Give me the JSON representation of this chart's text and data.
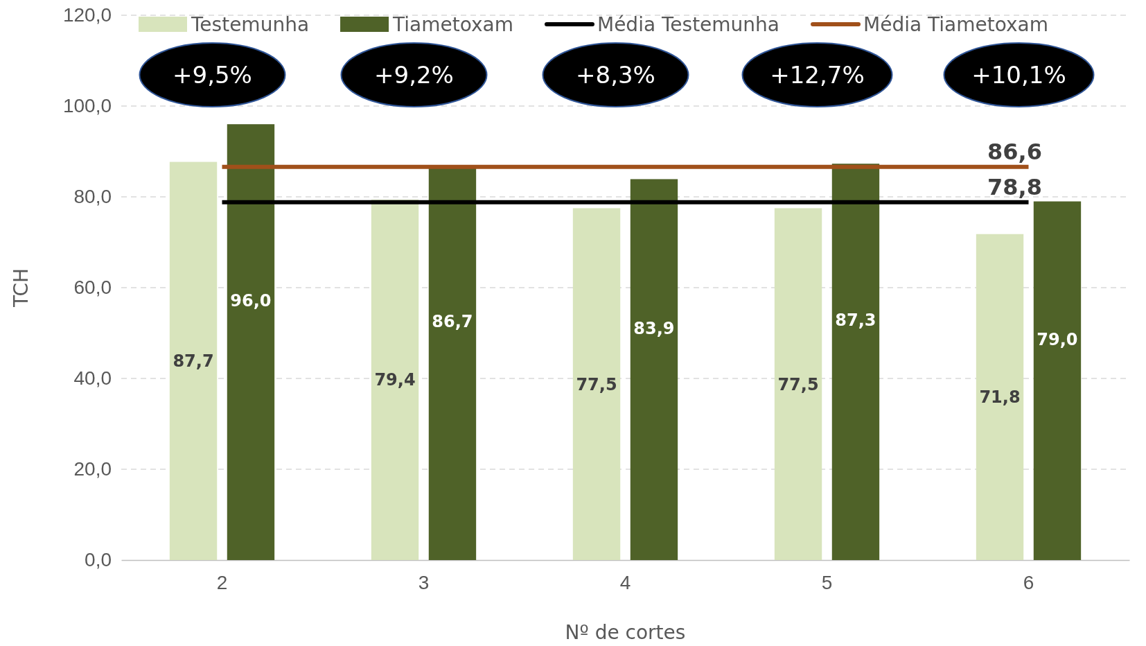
{
  "chart_data": {
    "type": "bar",
    "xlabel": "Nº de cortes",
    "ylabel": "TCH",
    "categories": [
      "2",
      "3",
      "4",
      "5",
      "6"
    ],
    "series": [
      {
        "name": "Testemunha",
        "color": "#d8e4bc",
        "values": [
          87.7,
          79.4,
          77.5,
          77.5,
          71.8
        ],
        "value_labels": [
          "87,7",
          "79,4",
          "77,5",
          "77,5",
          "71,8"
        ]
      },
      {
        "name": "Tiametoxam",
        "color": "#4f6228",
        "values": [
          96.0,
          86.7,
          83.9,
          87.3,
          79.0
        ],
        "value_labels": [
          "96,0",
          "86,7",
          "83,9",
          "87,3",
          "79,0"
        ]
      },
      {
        "name": "Média Testemunha",
        "type": "line",
        "color": "#000000",
        "values": [
          78.8,
          78.8,
          78.8,
          78.8,
          78.8
        ],
        "value_labels": [
          null,
          null,
          null,
          null,
          "78,8"
        ]
      },
      {
        "name": "Média Tiametoxam",
        "type": "line",
        "color": "#a0501a",
        "values": [
          86.6,
          86.6,
          86.6,
          86.6,
          86.6
        ],
        "value_labels": [
          null,
          null,
          null,
          null,
          "86,6"
        ]
      }
    ],
    "ylim": [
      0,
      120
    ],
    "yticks": [
      {
        "value": 0,
        "label": "0,0"
      },
      {
        "value": 20,
        "label": "20,0"
      },
      {
        "value": 40,
        "label": "40,0"
      },
      {
        "value": 60,
        "label": "60,0"
      },
      {
        "value": 80,
        "label": "80,0"
      },
      {
        "value": 100,
        "label": "100,0"
      },
      {
        "value": 120,
        "label": "120,0"
      }
    ],
    "grid": "y",
    "legend": "top",
    "annotations": [
      "+9,5%",
      "+9,2%",
      "+8,3%",
      "+12,7%",
      "+10,1%"
    ]
  }
}
